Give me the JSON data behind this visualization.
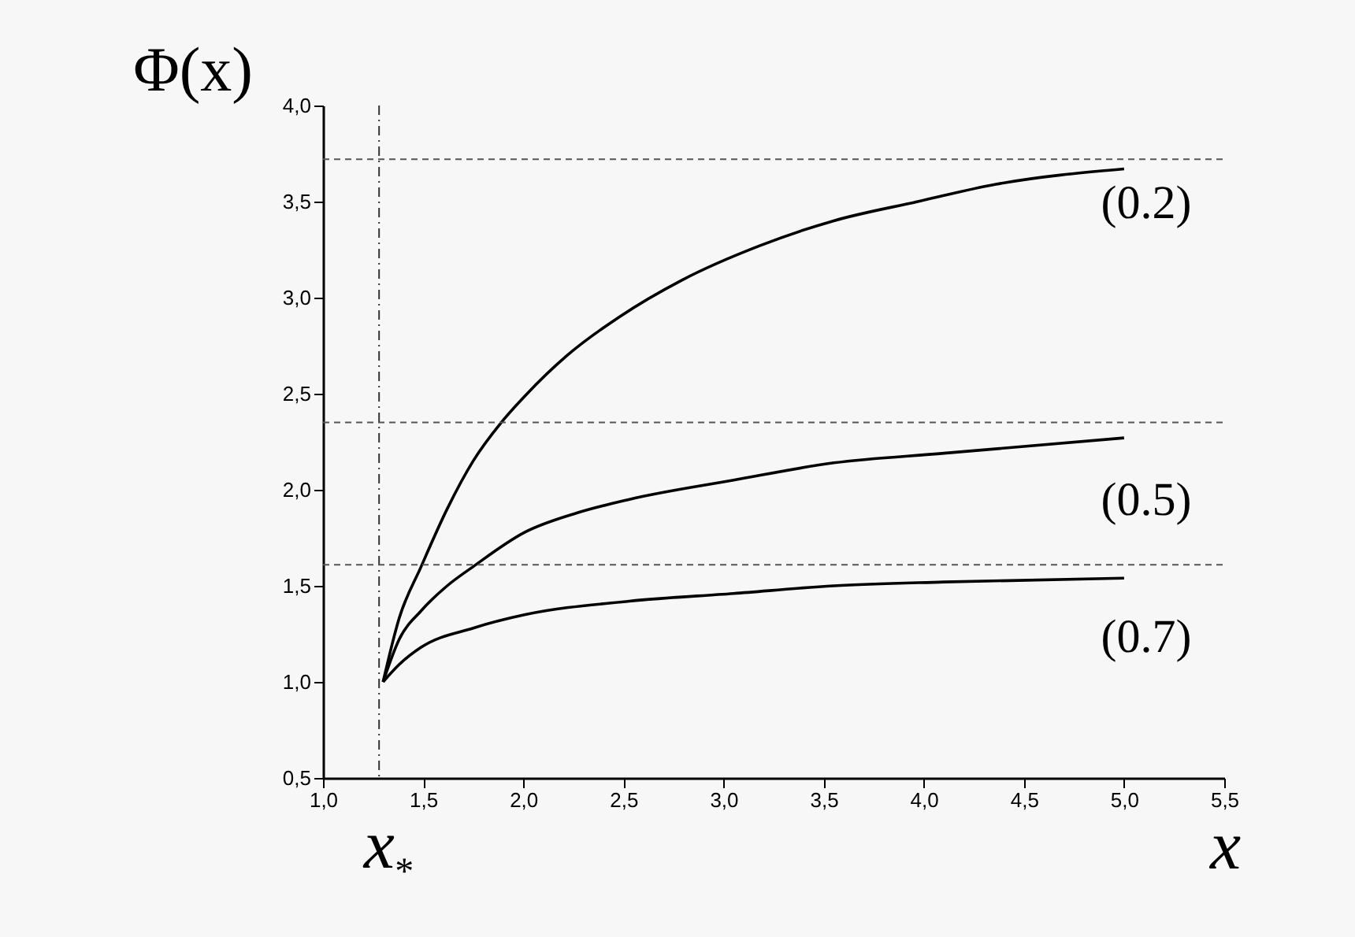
{
  "chart_data": {
    "type": "line",
    "xlabel": "x",
    "ylabel": "Φ(x)",
    "xlim": [
      1.0,
      5.5
    ],
    "ylim": [
      0.5,
      4.0
    ],
    "xticks": [
      {
        "value": 1.0,
        "label": "1,0"
      },
      {
        "value": 1.5,
        "label": "1,5"
      },
      {
        "value": 2.0,
        "label": "2,0"
      },
      {
        "value": 2.5,
        "label": "2,5"
      },
      {
        "value": 3.0,
        "label": "3,0"
      },
      {
        "value": 3.5,
        "label": "3,5"
      },
      {
        "value": 4.0,
        "label": "4,0"
      },
      {
        "value": 4.5,
        "label": "4,5"
      },
      {
        "value": 5.0,
        "label": "5,0"
      },
      {
        "value": 5.5,
        "label": "5,5"
      }
    ],
    "yticks": [
      {
        "value": 0.5,
        "label": "0,5"
      },
      {
        "value": 1.0,
        "label": "1,0"
      },
      {
        "value": 1.5,
        "label": "1,5"
      },
      {
        "value": 2.0,
        "label": "2,0"
      },
      {
        "value": 2.5,
        "label": "2,5"
      },
      {
        "value": 3.0,
        "label": "3,0"
      },
      {
        "value": 3.5,
        "label": "3,5"
      },
      {
        "value": 4.0,
        "label": "4,0"
      }
    ],
    "grid": false,
    "legend": false,
    "marker": "none",
    "line_style": "solid",
    "series": [
      {
        "name": "(0.2)",
        "color": "#000000",
        "x": [
          1.3,
          1.38,
          1.49,
          1.62,
          1.75,
          1.89,
          2.01,
          2.22,
          2.48,
          2.79,
          3.18,
          3.55,
          3.97,
          4.36,
          5.0
        ],
        "values": [
          1.0,
          1.33,
          1.6,
          1.9,
          2.15,
          2.35,
          2.49,
          2.7,
          2.9,
          3.09,
          3.27,
          3.4,
          3.5,
          3.59,
          3.67
        ]
      },
      {
        "name": "(0.5)",
        "color": "#000000",
        "x": [
          1.3,
          1.38,
          1.49,
          1.62,
          1.75,
          2.01,
          2.27,
          2.53,
          3.05,
          3.55,
          4.1,
          5.0
        ],
        "values": [
          1.0,
          1.22,
          1.37,
          1.5,
          1.6,
          1.78,
          1.88,
          1.95,
          2.05,
          2.14,
          2.19,
          2.27
        ]
      },
      {
        "name": "(0.7)",
        "color": "#000000",
        "x": [
          1.3,
          1.38,
          1.49,
          1.75,
          2.01,
          2.53,
          3.05,
          3.55,
          4.1,
          5.0
        ],
        "values": [
          1.0,
          1.09,
          1.18,
          1.28,
          1.35,
          1.42,
          1.46,
          1.5,
          1.52,
          1.54
        ]
      }
    ],
    "ref_lines": [
      {
        "axis": "x",
        "value": 1.28,
        "label": "x$_{*}$",
        "color": "#333333",
        "line_style": "dashdot"
      },
      {
        "axis": "y",
        "value": 3.72,
        "color": "#555555",
        "line_style": "dashed"
      },
      {
        "axis": "y",
        "value": 2.35,
        "color": "#555555",
        "line_style": "dashed"
      },
      {
        "axis": "y",
        "value": 1.61,
        "color": "#555555",
        "line_style": "dashed"
      }
    ]
  }
}
